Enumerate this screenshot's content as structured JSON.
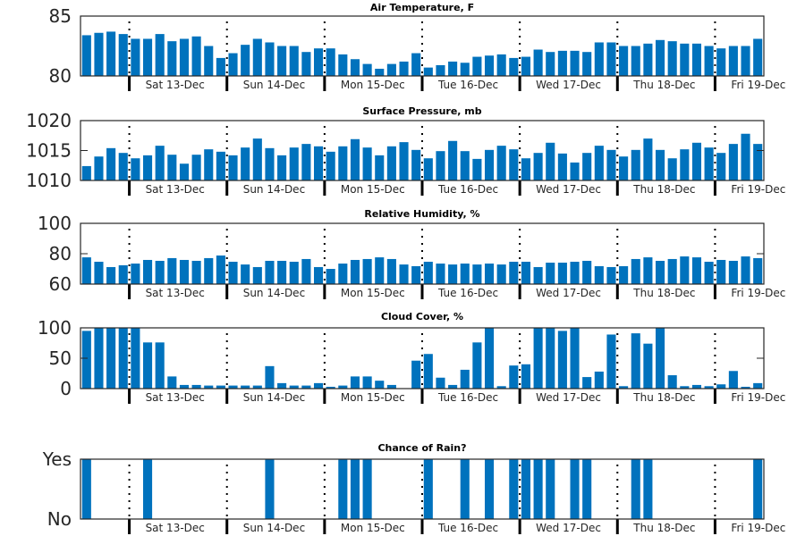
{
  "chart_data": [
    {
      "type": "bar",
      "title": "Air Temperature, F",
      "ylabel": "",
      "ylim": [
        80,
        85
      ],
      "yticks": [
        80,
        85
      ],
      "ytick_labels": [
        "80",
        "85"
      ],
      "series": [
        {
          "name": "Air Temperature",
          "values": [
            83.4,
            83.6,
            83.7,
            83.5,
            83.1,
            83.1,
            83.5,
            82.9,
            83.1,
            83.3,
            82.5,
            81.5,
            81.9,
            82.6,
            83.1,
            82.8,
            82.5,
            82.5,
            82.0,
            82.3,
            82.3,
            81.8,
            81.4,
            81.0,
            80.6,
            81.0,
            81.2,
            81.9,
            80.7,
            80.9,
            81.2,
            81.1,
            81.6,
            81.7,
            81.8,
            81.5,
            81.6,
            82.2,
            82.0,
            82.1,
            82.1,
            82.0,
            82.8,
            82.8,
            82.5,
            82.5,
            82.7,
            83.0,
            82.9,
            82.7,
            82.7,
            82.5,
            82.3,
            82.5,
            82.5,
            83.1
          ]
        }
      ]
    },
    {
      "type": "bar",
      "title": "Surface Pressure, mb",
      "ylabel": "",
      "ylim": [
        1010,
        1020
      ],
      "yticks": [
        1010,
        1015,
        1020
      ],
      "ytick_labels": [
        "1010",
        "1015",
        "1020"
      ],
      "series": [
        {
          "name": "Surface Pressure",
          "values": [
            1012.4,
            1014.0,
            1015.4,
            1014.6,
            1013.7,
            1014.2,
            1015.8,
            1014.3,
            1012.8,
            1014.3,
            1015.2,
            1014.8,
            1014.2,
            1015.5,
            1017.0,
            1015.4,
            1014.2,
            1015.5,
            1016.1,
            1015.7,
            1014.8,
            1015.7,
            1016.9,
            1015.5,
            1014.2,
            1015.7,
            1016.4,
            1015.1,
            1013.7,
            1014.9,
            1016.6,
            1014.9,
            1013.6,
            1015.1,
            1015.8,
            1015.2,
            1013.7,
            1014.6,
            1016.3,
            1014.5,
            1013.0,
            1014.6,
            1015.8,
            1015.1,
            1014.0,
            1015.1,
            1017.0,
            1015.1,
            1013.7,
            1015.2,
            1016.3,
            1015.5,
            1014.6,
            1016.1,
            1017.8,
            1016.1
          ]
        }
      ]
    },
    {
      "type": "bar",
      "title": "Relative Humidity, %",
      "ylabel": "",
      "ylim": [
        60,
        100
      ],
      "yticks": [
        60,
        80,
        100
      ],
      "ytick_labels": [
        "60",
        "80",
        "100"
      ],
      "series": [
        {
          "name": "Relative Humidity",
          "values": [
            77.6,
            74.7,
            71.2,
            72.4,
            73.5,
            75.9,
            75.3,
            77.1,
            75.9,
            75.3,
            77.1,
            78.8,
            74.7,
            72.9,
            71.2,
            75.3,
            75.3,
            74.7,
            76.5,
            71.2,
            70.0,
            73.5,
            75.9,
            76.5,
            77.6,
            76.5,
            72.9,
            71.8,
            74.7,
            73.5,
            72.9,
            73.5,
            72.9,
            73.5,
            72.9,
            74.7,
            74.7,
            71.2,
            74.1,
            74.1,
            74.7,
            75.3,
            71.8,
            71.2,
            71.8,
            76.5,
            77.6,
            75.3,
            76.5,
            78.2,
            77.6,
            74.7,
            75.9,
            75.3,
            78.2,
            77.1
          ]
        }
      ]
    },
    {
      "type": "bar",
      "title": "Cloud Cover, %",
      "ylabel": "",
      "ylim": [
        0,
        100
      ],
      "yticks": [
        0,
        50,
        100
      ],
      "ytick_labels": [
        "0",
        "50",
        "100"
      ],
      "series": [
        {
          "name": "Cloud Cover",
          "values": [
            95,
            100,
            100,
            100,
            100,
            76,
            76,
            20,
            6,
            6,
            5,
            5,
            5,
            5,
            5,
            37,
            9,
            5,
            5,
            9,
            3,
            5,
            20,
            20,
            13,
            6,
            0,
            46,
            57,
            18,
            6,
            31,
            76,
            100,
            4,
            38,
            40,
            100,
            100,
            95,
            100,
            19,
            28,
            89,
            4,
            91,
            74,
            100,
            22,
            4,
            6,
            4,
            7,
            29,
            3,
            9
          ]
        }
      ]
    },
    {
      "type": "bar",
      "title": "Chance of Rain?",
      "ylabel": "",
      "ylim": [
        0,
        1
      ],
      "yticks": [
        0,
        1
      ],
      "ytick_labels": [
        "No",
        "Yes"
      ],
      "series": [
        {
          "name": "Chance of Rain",
          "values": [
            1,
            0,
            0,
            0,
            0,
            1,
            0,
            0,
            0,
            0,
            0,
            0,
            0,
            0,
            0,
            1,
            0,
            0,
            0,
            0,
            0,
            1,
            1,
            1,
            0,
            0,
            0,
            0,
            1,
            0,
            0,
            1,
            0,
            1,
            0,
            1,
            1,
            1,
            1,
            0,
            1,
            1,
            0,
            0,
            0,
            1,
            1,
            0,
            0,
            0,
            0,
            0,
            0,
            0,
            0,
            1
          ]
        }
      ]
    }
  ],
  "x_axis": {
    "sample_interval_hours": 3,
    "n_points": 56,
    "points_before_first_day": 4,
    "day_labels": [
      "Sat 13-Dec",
      "Sun 14-Dec",
      "Mon 15-Dec",
      "Tue 16-Dec",
      "Wed 17-Dec",
      "Thu 18-Dec",
      "Fri 19-Dec"
    ],
    "day_boundary_style": "dotted"
  },
  "colors": {
    "bar": "#0072BD",
    "axis": "#262626",
    "day_line": "#000000"
  }
}
